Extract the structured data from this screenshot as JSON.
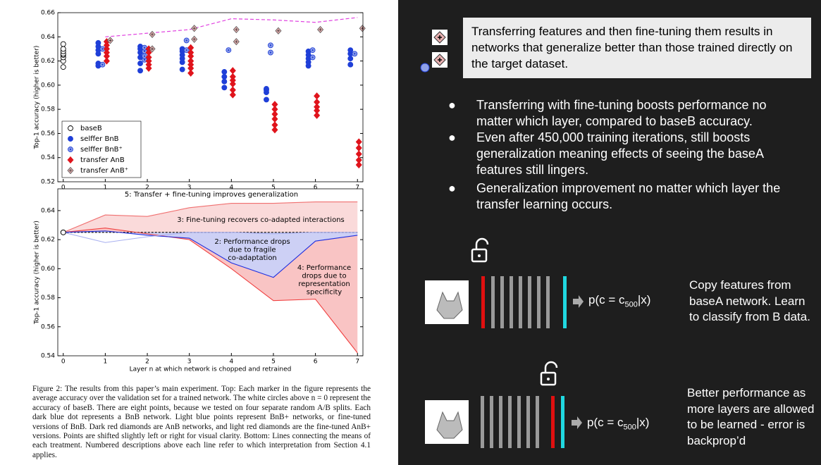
{
  "chart_data": [
    {
      "type": "scatter",
      "ylabel": "Top-1 accuracy (higher is better)",
      "xlim": [
        -0.13,
        7.13
      ],
      "xticks": [
        0,
        1,
        2,
        3,
        4,
        5,
        6,
        7
      ],
      "ylim": [
        0.52,
        0.66
      ],
      "yticks": [
        0.52,
        0.54,
        0.56,
        0.58,
        {
          "value": 0.6,
          "label": "0.60"
        },
        0.62,
        0.64,
        0.66
      ],
      "legend": "lower left",
      "series": [
        {
          "name": "baseB",
          "color": "#000000",
          "marker": "circle-open",
          "x": [
            0,
            0,
            0,
            0,
            0,
            0,
            0,
            0
          ],
          "values": [
            0.615,
            0.62,
            0.623,
            0.625,
            0.626,
            0.628,
            0.63,
            0.634
          ]
        },
        {
          "name": "selffer BnB",
          "color": "#1f3fd8",
          "marker": "circle",
          "x": [
            1,
            1,
            1,
            1,
            1,
            1,
            2,
            2,
            2,
            2,
            2,
            2,
            3,
            3,
            3,
            3,
            3,
            3,
            4,
            4,
            4,
            4,
            5,
            5,
            5,
            5,
            6,
            6,
            6,
            6,
            6,
            7,
            7,
            7,
            7
          ],
          "values": [
            0.616,
            0.618,
            0.626,
            0.629,
            0.632,
            0.635,
            0.612,
            0.618,
            0.623,
            0.627,
            0.63,
            0.632,
            0.613,
            0.619,
            0.622,
            0.625,
            0.628,
            0.63,
            0.598,
            0.603,
            0.607,
            0.611,
            0.588,
            0.594,
            0.596,
            0.597,
            0.616,
            0.619,
            0.622,
            0.625,
            0.628,
            0.617,
            0.622,
            0.626,
            0.629
          ]
        },
        {
          "name": "selffer BnB⁺",
          "color": "#8fa0e8",
          "marker": "circle-dot",
          "x": [
            1,
            1,
            2,
            2,
            2,
            2,
            3,
            3,
            4,
            5,
            5,
            6,
            6,
            7
          ],
          "values": [
            0.617,
            0.63,
            0.621,
            0.624,
            0.628,
            0.631,
            0.629,
            0.637,
            0.629,
            0.627,
            0.633,
            0.623,
            0.629,
            0.626
          ]
        },
        {
          "name": "transfer AnB",
          "color": "#e0141c",
          "marker": "diamond",
          "x": [
            1,
            1,
            1,
            1,
            1,
            1,
            2,
            2,
            2,
            2,
            2,
            2,
            3,
            3,
            3,
            3,
            3,
            3,
            3,
            4,
            4,
            4,
            4,
            4,
            4,
            5,
            5,
            5,
            5,
            5,
            5,
            6,
            6,
            6,
            6,
            6,
            7,
            7,
            7,
            7,
            7
          ],
          "values": [
            0.62,
            0.624,
            0.627,
            0.63,
            0.633,
            0.636,
            0.614,
            0.617,
            0.62,
            0.623,
            0.627,
            0.63,
            0.61,
            0.614,
            0.617,
            0.62,
            0.624,
            0.627,
            0.631,
            0.592,
            0.596,
            0.601,
            0.604,
            0.607,
            0.612,
            0.563,
            0.567,
            0.572,
            0.576,
            0.58,
            0.584,
            0.575,
            0.579,
            0.582,
            0.586,
            0.591,
            0.534,
            0.538,
            0.543,
            0.548,
            0.553
          ]
        },
        {
          "name": "transfer AnB⁺",
          "color": "#e8b0b0",
          "marker": "diamond-plus",
          "x": [
            1,
            2,
            2,
            3,
            3,
            4,
            4,
            5,
            6,
            7
          ],
          "values": [
            0.637,
            0.63,
            0.642,
            0.638,
            0.647,
            0.636,
            0.646,
            0.645,
            0.646,
            0.647
          ]
        }
      ],
      "trend": {
        "color": "#e040e0",
        "x": [
          1,
          2,
          3,
          4,
          5,
          6,
          7
        ],
        "values": [
          0.64,
          0.643,
          0.646,
          0.655,
          0.654,
          0.652,
          0.656
        ]
      }
    },
    {
      "type": "line",
      "xlabel": "Layer n at which network is chopped and retrained",
      "ylabel": "Top-1 accuracy (higher is better)",
      "xlim": [
        -0.13,
        7.13
      ],
      "xticks": [
        0,
        1,
        2,
        3,
        4,
        5,
        6,
        7
      ],
      "ylim": [
        0.54,
        0.655
      ],
      "yticks": [
        0.54,
        0.56,
        0.58,
        {
          "value": 0.6,
          "label": "0.60"
        },
        0.62,
        0.64
      ],
      "x": [
        0,
        1,
        2,
        3,
        4,
        5,
        6,
        7
      ],
      "series": [
        {
          "color": "#000000",
          "dash": true,
          "values": [
            0.625,
            0.625,
            0.625,
            0.625,
            0.625,
            0.625,
            0.625,
            0.625
          ]
        },
        {
          "color": "#f07070",
          "fill": "#fadada",
          "values": [
            0.625,
            0.637,
            0.636,
            0.642,
            0.645,
            0.645,
            0.646,
            0.646
          ]
        },
        {
          "color": "#f04040",
          "fill": "#f9c4c4",
          "values": [
            0.625,
            0.628,
            0.624,
            0.62,
            0.6,
            0.578,
            0.579,
            0.542
          ]
        },
        {
          "color": "#2030e0",
          "fill": "#cdd0f5",
          "values": [
            0.625,
            0.626,
            0.623,
            0.621,
            0.604,
            0.594,
            0.619,
            0.623
          ]
        },
        {
          "color": "#a8b0f0",
          "values": [
            0.625,
            0.618,
            0.622,
            0.625,
            0.625,
            0.624,
            0.625,
            0.625
          ]
        }
      ],
      "annotations": [
        [
          "5: Transfer + fine-tuning improves generalization"
        ],
        [
          "3: Fine-tuning recovers co-adapted interactions"
        ],
        [
          "2: Performance drops",
          "due to fragile",
          "co-adaptation"
        ],
        [
          "4: Performance",
          "drops due to",
          "representation",
          "specificity"
        ]
      ]
    }
  ],
  "caption": "Figure 2: The results from this paper’s main experiment. Top: Each marker in the figure represents the average accuracy over the validation set for a trained network. The white circles above n = 0 represent the accuracy of baseB. There are eight points, because we tested on four separate random A/B splits. Each dark blue dot represents a BnB network. Light blue points represent BnB+ networks, or fine-tuned versions of BnB. Dark red diamonds are AnB networks, and light red diamonds are the fine-tuned AnB+ versions. Points are shifted slightly left or right for visual clarity. Bottom: Lines connecting the means of each treatment. Numbered descriptions above each line refer to which interpretation from Section 4.1 applies.",
  "callout": "Transferring features and then fine-tuning them results in networks that generalize better than those trained directly on the target dataset.",
  "bullets": [
    "Transferring with fine-tuning boosts performance no matter which layer, compared to baseB accuracy.",
    "Even after 450,000 training iterations, still boosts generalization meaning effects of seeing the baseA features still lingers.",
    "Generalization improvement no matter which layer the transfer learning occurs."
  ],
  "diagrams": [
    {
      "formula": [
        "p(c = c",
        "500",
        "|x)"
      ],
      "caption": "Copy features from baseA network. Learn to classify from B data."
    },
    {
      "formula": [
        "p(c = c",
        "500",
        "|x)"
      ],
      "caption": "Better performance as more layers are allowed to be learned - error is backprop’d"
    }
  ]
}
